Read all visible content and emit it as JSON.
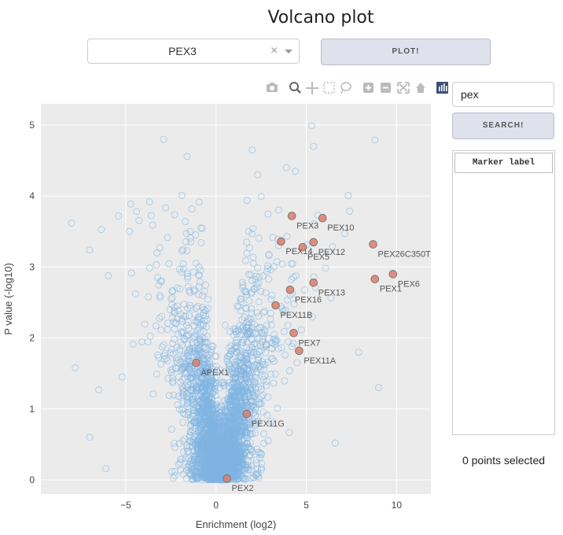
{
  "page": {
    "title": "Volcano plot"
  },
  "controls": {
    "selected_gene": "PEX3",
    "clear_icon": "×",
    "plot_button": "PLOT!",
    "search_value": "pex",
    "search_button": "SEARCH!",
    "marker_header": "Marker label",
    "selection_status": "0 points selected"
  },
  "modebar": {
    "icons": [
      "camera-icon",
      "zoom-icon",
      "pan-icon",
      "box-select-icon",
      "lasso-icon",
      "zoom-in-icon",
      "zoom-out-icon",
      "autoscale-icon",
      "reset-axes-icon",
      "plotly-logo-icon"
    ]
  },
  "colors": {
    "background_points": "#7fb4e2",
    "highlight_points": "#e07b6a",
    "plot_bg": "#ebebeb"
  },
  "chart_data": {
    "type": "scatter",
    "xlabel": "Enrichment (log2)",
    "ylabel": "P value (-log10)",
    "xlim": [
      -9.7,
      11.9
    ],
    "ylim": [
      -0.2,
      5.3
    ],
    "xticks": [
      -5,
      0,
      5,
      10
    ],
    "yticks": [
      0,
      1,
      2,
      3,
      4,
      5
    ],
    "grid": true,
    "highlighted": [
      {
        "label": "PEX3",
        "x": 4.2,
        "y": 3.72
      },
      {
        "label": "PEX10",
        "x": 5.9,
        "y": 3.69
      },
      {
        "label": "PEX14",
        "x": 3.6,
        "y": 3.36
      },
      {
        "label": "PEX12",
        "x": 5.4,
        "y": 3.35
      },
      {
        "label": "PEX5",
        "x": 4.8,
        "y": 3.28
      },
      {
        "label": "PEX26C350T",
        "x": 8.7,
        "y": 3.32
      },
      {
        "label": "PEX1",
        "x": 8.8,
        "y": 2.83
      },
      {
        "label": "PEX6",
        "x": 9.8,
        "y": 2.9
      },
      {
        "label": "PEX13",
        "x": 5.4,
        "y": 2.78
      },
      {
        "label": "PEX16",
        "x": 4.1,
        "y": 2.68
      },
      {
        "label": "PEX11B",
        "x": 3.3,
        "y": 2.46
      },
      {
        "label": "PEX7",
        "x": 4.3,
        "y": 2.07
      },
      {
        "label": "PEX11A",
        "x": 4.6,
        "y": 1.82
      },
      {
        "label": "APEX1",
        "x": -1.1,
        "y": 1.65
      },
      {
        "label": "PEX11G",
        "x": 1.7,
        "y": 0.93
      },
      {
        "label": "PEX2",
        "x": 0.6,
        "y": 0.02
      }
    ],
    "background_points": {
      "description": "",
      "outliers": [
        [
          -8.0,
          3.62
        ],
        [
          -7.0,
          3.24
        ],
        [
          -5.4,
          3.72
        ],
        [
          -2.9,
          4.8
        ],
        [
          -1.6,
          4.56
        ],
        [
          2.0,
          4.65
        ],
        [
          5.3,
          4.99
        ],
        [
          8.8,
          4.79
        ],
        [
          5.4,
          4.7
        ],
        [
          -7.8,
          1.58
        ],
        [
          -6.5,
          1.27
        ],
        [
          -6.1,
          0.16
        ],
        [
          -7.0,
          0.6
        ],
        [
          -5.2,
          1.45
        ],
        [
          7.9,
          1.8
        ],
        [
          9.0,
          1.3
        ],
        [
          6.6,
          0.52
        ],
        [
          3.9,
          4.4
        ],
        [
          4.4,
          4.35
        ],
        [
          2.3,
          4.3
        ]
      ]
    }
  }
}
